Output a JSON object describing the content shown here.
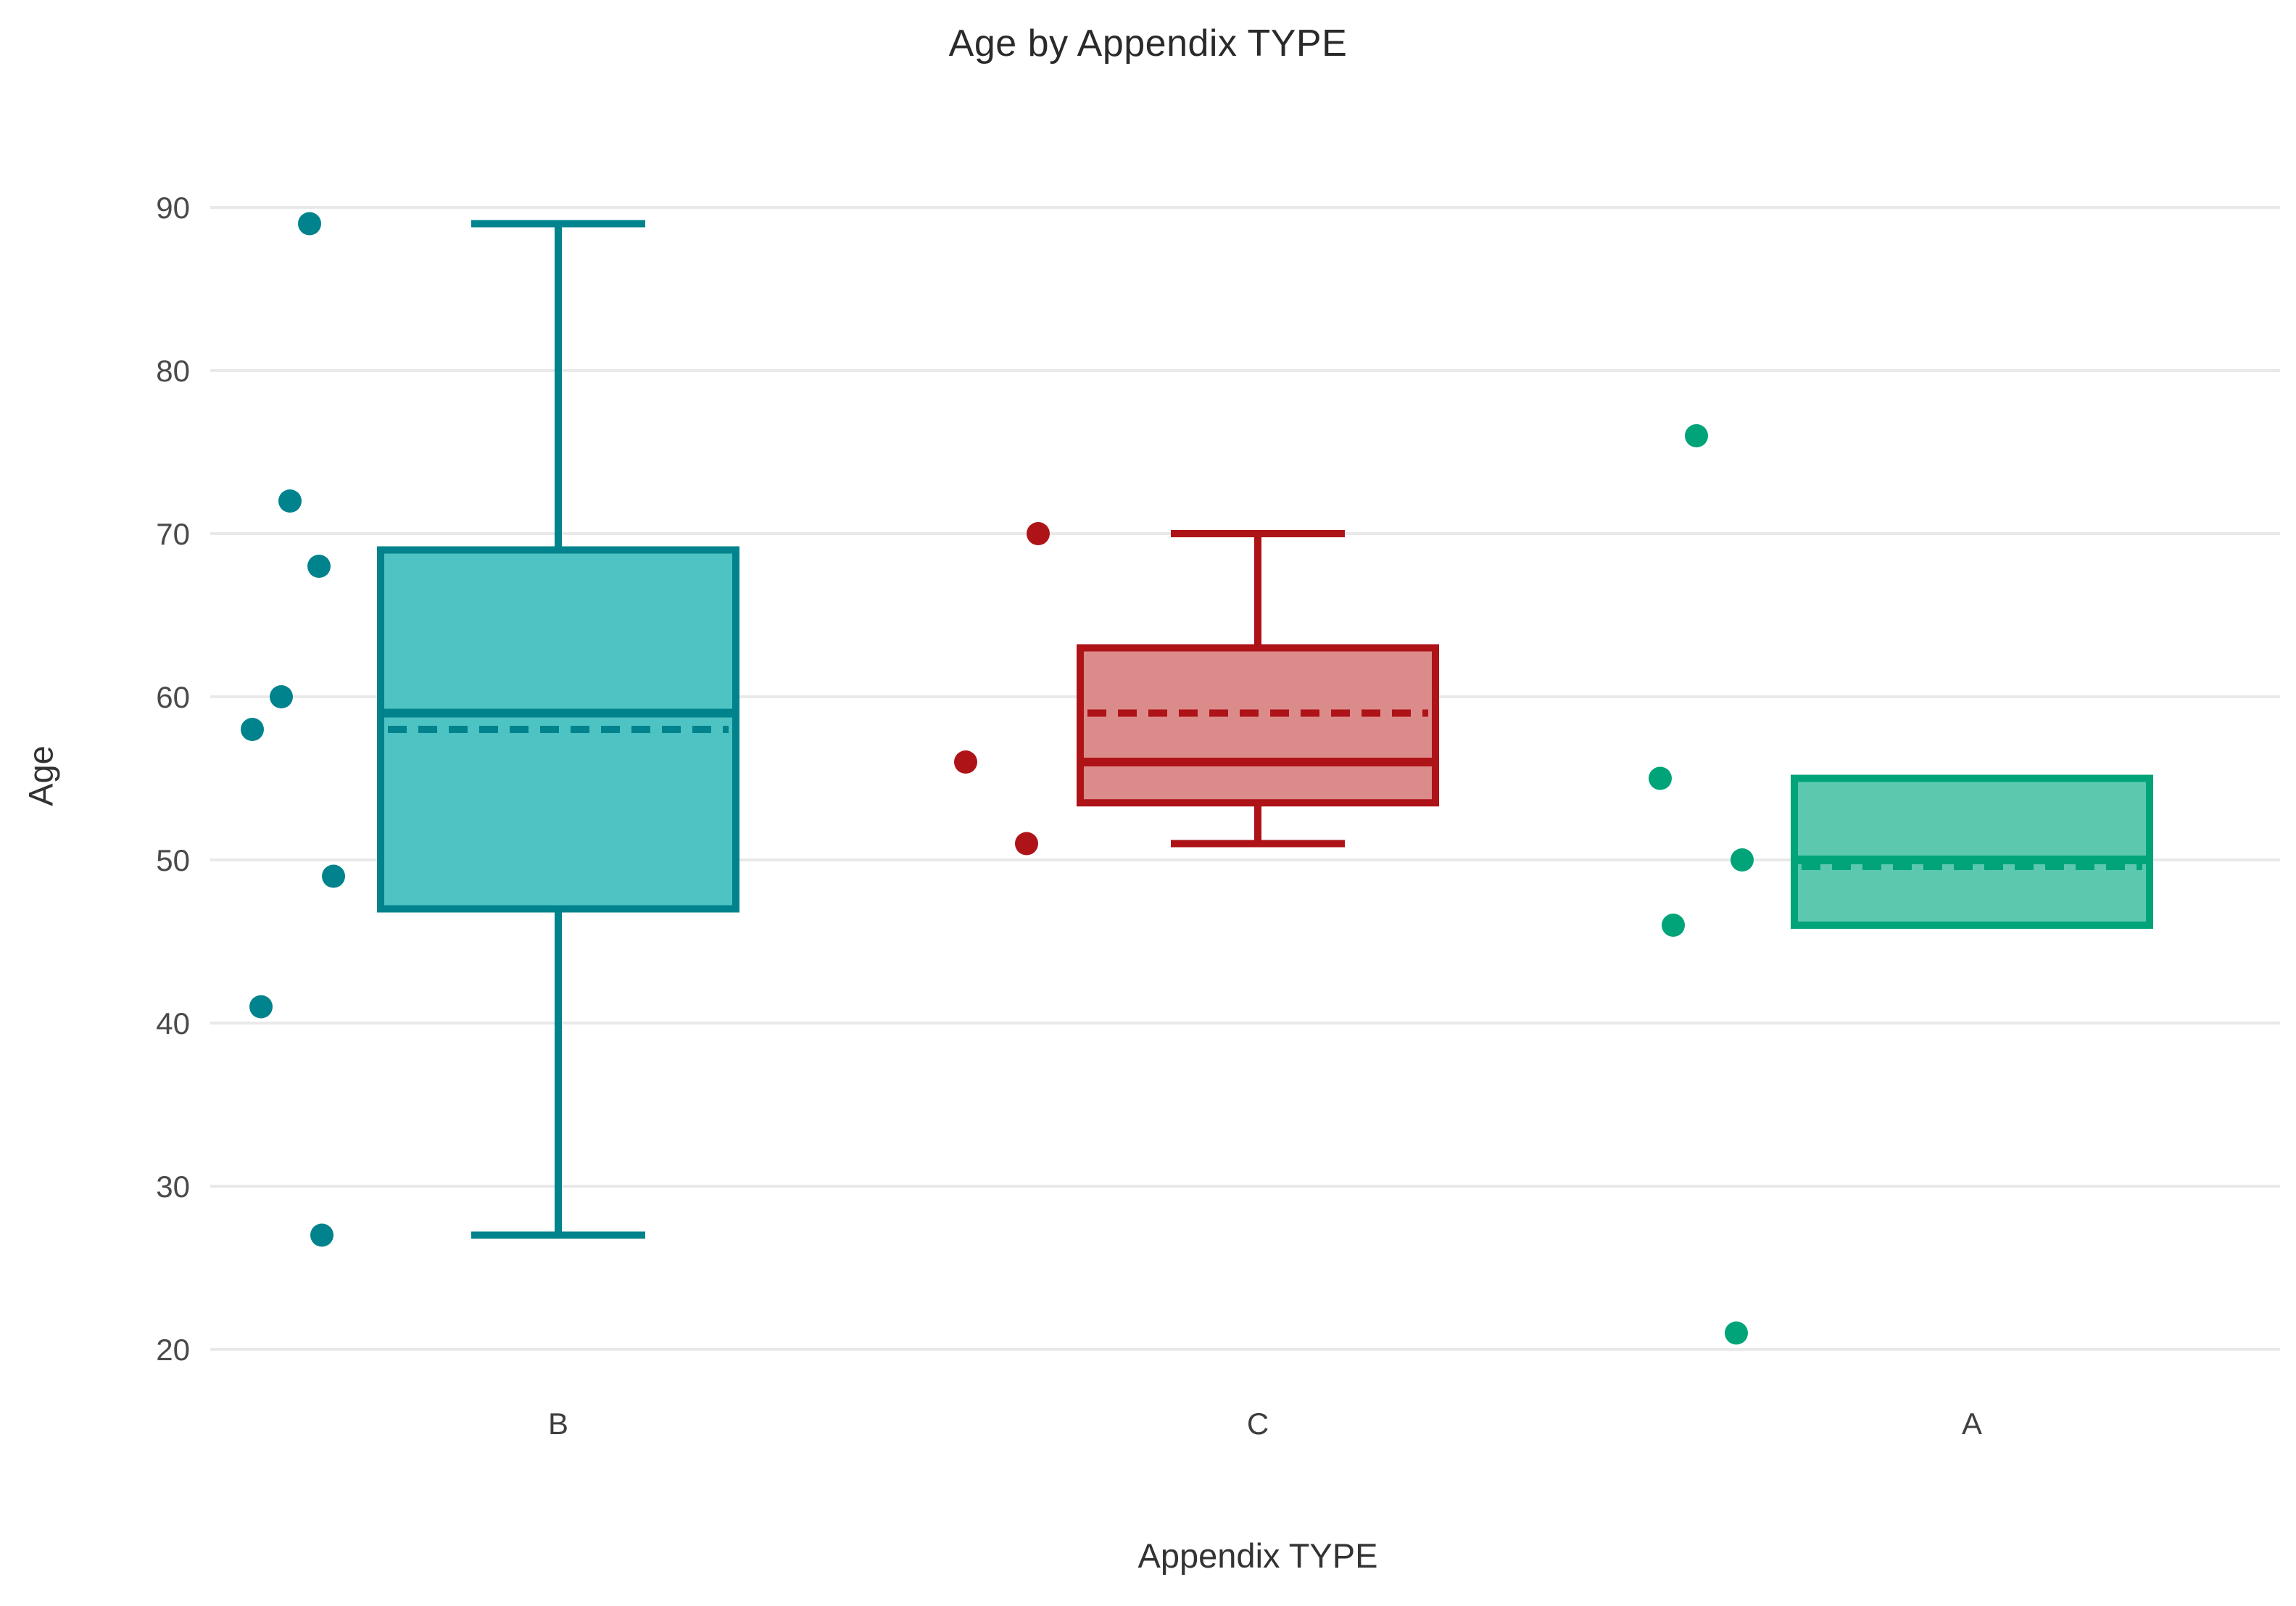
{
  "chart_data": {
    "type": "box",
    "title": "Age by Appendix TYPE",
    "xlabel": "Appendix TYPE",
    "ylabel": "Age",
    "categories": [
      "B",
      "C",
      "A"
    ],
    "y_ticks": [
      90,
      80,
      70,
      60,
      50,
      40,
      30,
      20
    ],
    "ylim": [
      15,
      95
    ],
    "grid": true,
    "legend_position": "none",
    "grid_color": "#e9e9e9",
    "tick_label_color": "#4a4a4a",
    "category_label_color": "#3f3f3f",
    "raw_values": {
      "B": [
        27,
        41,
        49,
        58,
        60,
        68,
        72,
        89
      ],
      "C": [
        51,
        56,
        70
      ],
      "A": [
        21,
        46,
        50,
        55,
        76
      ]
    },
    "groups": [
      {
        "label": "B",
        "color": {
          "stroke": "#00838C",
          "fill": "#4EC3C3"
        },
        "stats": {
          "whisker_low": 27,
          "q1": 47,
          "median": 59,
          "mean": 58,
          "q3": 69,
          "whisker_high": 89
        },
        "points": [
          {
            "value": 89,
            "offset": -343
          },
          {
            "value": 72,
            "offset": -370
          },
          {
            "value": 68,
            "offset": -330
          },
          {
            "value": 60,
            "offset": -382
          },
          {
            "value": 58,
            "offset": -422
          },
          {
            "value": 49,
            "offset": -310
          },
          {
            "value": 41,
            "offset": -410
          },
          {
            "value": 27,
            "offset": -326
          }
        ]
      },
      {
        "label": "C",
        "color": {
          "stroke": "#AE1317",
          "fill": "#DC8B8B"
        },
        "stats": {
          "whisker_low": 51,
          "q1": 53.5,
          "median": 56,
          "mean": 59,
          "q3": 63,
          "whisker_high": 70
        },
        "points": [
          {
            "value": 70,
            "offset": -303
          },
          {
            "value": 56,
            "offset": -403
          },
          {
            "value": 51,
            "offset": -319
          }
        ]
      },
      {
        "label": "A",
        "color": {
          "stroke": "#00A478",
          "fill": "#5CC9AE"
        },
        "stats": {
          "whisker_low": 46,
          "q1": 46,
          "median": 50,
          "mean": 49.6,
          "q3": 55,
          "whisker_high": 55
        },
        "points": [
          {
            "value": 76,
            "offset": -380
          },
          {
            "value": 55,
            "offset": -430
          },
          {
            "value": 50,
            "offset": -317
          },
          {
            "value": 46,
            "offset": -412
          },
          {
            "value": 21,
            "offset": -325
          }
        ]
      }
    ]
  }
}
